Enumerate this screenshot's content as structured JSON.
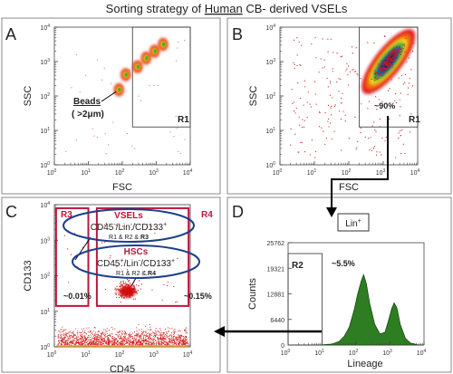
{
  "title": {
    "pre": "Sorting  strategy of ",
    "underlined": "Human",
    "post": " CB- derived VSELs"
  },
  "chart_data": [
    {
      "panel": "A",
      "type": "scatter",
      "xlabel": "FSC",
      "ylabel": "SSC",
      "x_ticks": [
        "0",
        "1",
        "2",
        "3",
        "4"
      ],
      "y_ticks": [
        "0",
        "1",
        "2",
        "3",
        "4"
      ],
      "xlim_log10": [
        0,
        4
      ],
      "ylim_log10": [
        0,
        4
      ],
      "gate": {
        "name": "R1",
        "x_log10": [
          2.3,
          4.0
        ],
        "y_log10": [
          1.1,
          4.0
        ]
      },
      "annotation": {
        "line1": "Beads",
        "line2": "( >2μm)"
      },
      "clusters_log10": [
        [
          1.9,
          2.18
        ],
        [
          2.1,
          2.62
        ],
        [
          2.45,
          2.85
        ],
        [
          2.7,
          3.1
        ],
        [
          2.95,
          3.3
        ],
        [
          3.2,
          3.5
        ]
      ]
    },
    {
      "panel": "B",
      "type": "scatter",
      "xlabel": "FSC",
      "ylabel": "SSC",
      "x_ticks": [
        "0",
        "1",
        "2",
        "3",
        "4"
      ],
      "y_ticks": [
        "0",
        "1",
        "2",
        "3",
        "4"
      ],
      "xlim_log10": [
        0,
        4
      ],
      "ylim_log10": [
        0,
        4
      ],
      "gate": {
        "name": "R1",
        "x_log10": [
          2.3,
          4.0
        ],
        "y_log10": [
          1.1,
          4.0
        ],
        "percent": "~90%"
      }
    },
    {
      "panel": "C",
      "type": "scatter",
      "xlabel": "CD45",
      "ylabel": "CD133",
      "x_ticks": [
        "0",
        "1",
        "2",
        "3",
        "4"
      ],
      "y_ticks": [
        "0",
        "1",
        "2",
        "3",
        "4"
      ],
      "xlim_log10": [
        0,
        4
      ],
      "ylim_log10": [
        0,
        4
      ],
      "gates": [
        {
          "name": "R3",
          "percent": "~0.01%",
          "x_log10": [
            0.05,
            1.0
          ],
          "y_log10": [
            1.15,
            3.9
          ]
        },
        {
          "name": "R4",
          "percent": "~0.15%",
          "x_log10": [
            1.25,
            3.95
          ],
          "y_log10": [
            1.15,
            3.9
          ]
        }
      ],
      "vsels": {
        "title": "VSELs",
        "main": "CD45",
        "sup1": "-",
        "mid1": "/Lin",
        "sup2": "-",
        "mid2": "/CD133",
        "sup3": "+",
        "gate_pre": "R1 & R2 & ",
        "gate_last": "R3"
      },
      "hscs": {
        "title": "HSCs",
        "main": "CD45",
        "sup1": "+",
        "mid1": "/Lin",
        "sup2": "-",
        "mid2": "/CD133",
        "sup3": "+",
        "gate_pre": "R1 & R2 & ",
        "gate_last": "R4"
      }
    },
    {
      "panel": "D",
      "type": "area",
      "xlabel": "Lineage",
      "ylabel": "Counts",
      "x_ticks": [
        "0",
        "1",
        "2",
        "3",
        "4"
      ],
      "xlim_log10": [
        0,
        4
      ],
      "y_ticks": [
        0,
        6440,
        12881,
        19321,
        25762
      ],
      "ylim": [
        0,
        25762
      ],
      "gate": {
        "name": "R2",
        "percent": "~5.5%",
        "x_log10": [
          0,
          1.0
        ]
      },
      "population_label": {
        "main": "Lin",
        "sup": "+"
      },
      "x_log10": [
        0,
        0.5,
        1.0,
        1.3,
        1.5,
        1.65,
        1.8,
        1.95,
        2.05,
        2.15,
        2.22,
        2.3,
        2.4,
        2.55,
        2.7,
        2.85,
        2.95,
        3.05,
        3.12,
        3.2,
        3.3,
        3.45,
        3.6,
        3.8,
        4.0
      ],
      "counts": [
        0,
        0,
        40,
        250,
        900,
        2200,
        4500,
        9000,
        12900,
        16000,
        17700,
        15500,
        10500,
        5200,
        2800,
        3200,
        6000,
        9200,
        10600,
        9400,
        5200,
        1700,
        500,
        100,
        0
      ]
    }
  ],
  "colors": {
    "gate": "#c0143c",
    "oval": "#1f3f8a",
    "green": "#2e7d22",
    "arrow": "#000000"
  }
}
